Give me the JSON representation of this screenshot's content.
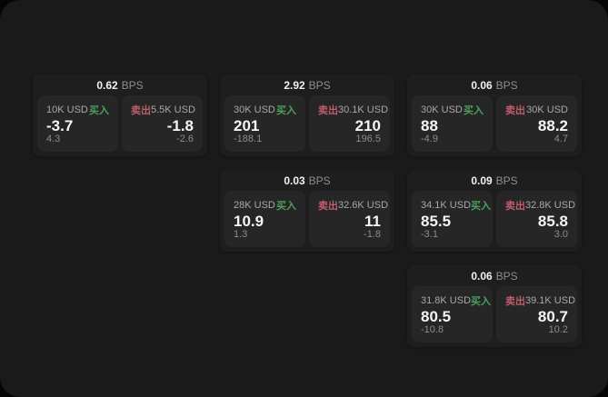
{
  "labels": {
    "bps": "BPS",
    "buy": "买入",
    "sell": "卖出"
  },
  "colors": {
    "window_bg": "#1a1a1a",
    "card_bg": "#1e1e1e",
    "panel_bg": "#262626",
    "buy_green": "#4e9e5f",
    "sell_red": "#c05c6c",
    "primary_text": "#f5f5f5",
    "secondary_text": "#8c8c8c"
  },
  "cards": [
    {
      "spread": "0.62",
      "buy": {
        "amount": "10K USD",
        "price": "-3.7",
        "sub": "4.3"
      },
      "sell": {
        "amount": "5.5K USD",
        "price": "-1.8",
        "sub": "-2.6"
      }
    },
    {
      "spread": "2.92",
      "buy": {
        "amount": "30K USD",
        "price": "201",
        "sub": "-188.1"
      },
      "sell": {
        "amount": "30.1K USD",
        "price": "210",
        "sub": "196.5"
      }
    },
    {
      "spread": "0.06",
      "buy": {
        "amount": "30K USD",
        "price": "88",
        "sub": "-4.9"
      },
      "sell": {
        "amount": "30K USD",
        "price": "88.2",
        "sub": "4.7"
      }
    },
    {
      "spread": "0.03",
      "buy": {
        "amount": "28K USD",
        "price": "10.9",
        "sub": "1.3"
      },
      "sell": {
        "amount": "32.6K USD",
        "price": "11",
        "sub": "-1.8"
      }
    },
    {
      "spread": "0.09",
      "buy": {
        "amount": "34.1K USD",
        "price": "85.5",
        "sub": "-3.1"
      },
      "sell": {
        "amount": "32.8K USD",
        "price": "85.8",
        "sub": "3.0"
      }
    },
    {
      "spread": "0.06",
      "buy": {
        "amount": "31.8K USD",
        "price": "80.5",
        "sub": "-10.8"
      },
      "sell": {
        "amount": "39.1K USD",
        "price": "80.7",
        "sub": "10.2"
      }
    }
  ]
}
